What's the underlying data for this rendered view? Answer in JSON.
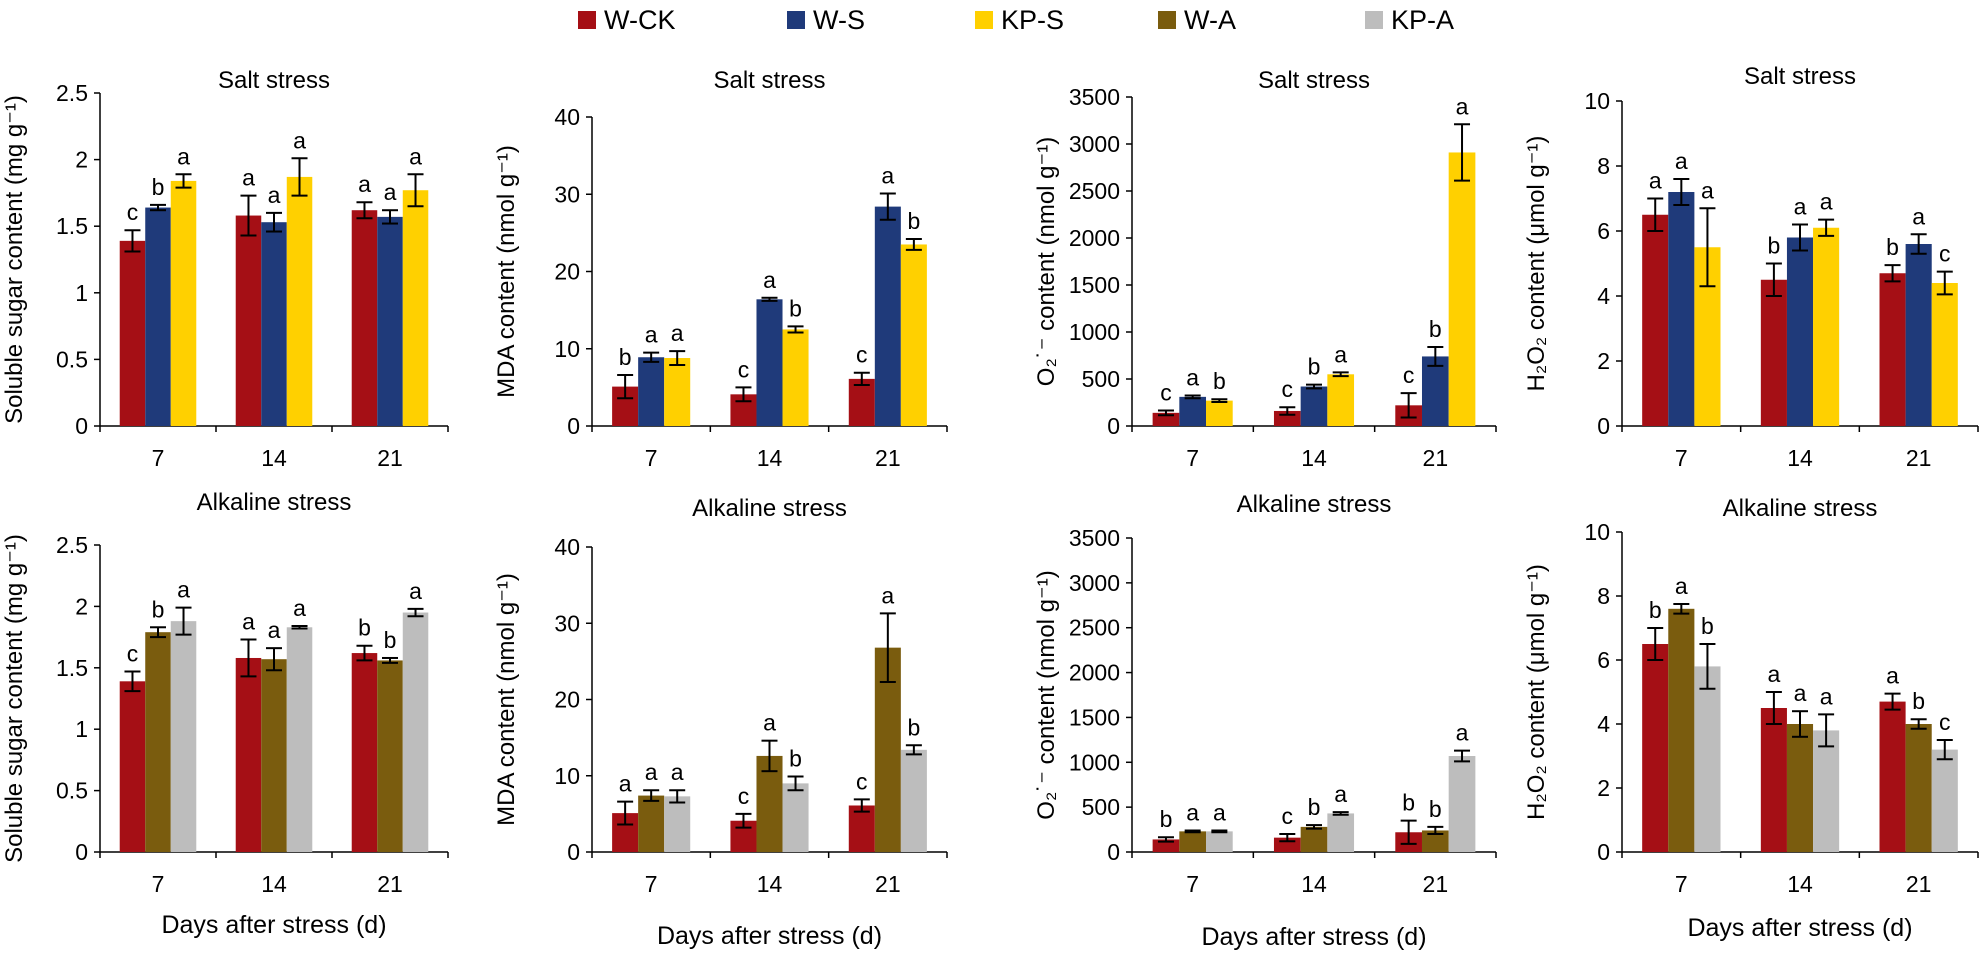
{
  "legend": [
    {
      "label": "W-CK",
      "color": "#A50F15"
    },
    {
      "label": "W-S",
      "color": "#1F3A7A"
    },
    {
      "label": "KP-S",
      "color": "#FFD000"
    },
    {
      "label": "W-A",
      "color": "#7A5C0E"
    },
    {
      "label": "KP-A",
      "color": "#BDBDBD"
    }
  ],
  "x_axis_label": "Days after stress (d)",
  "chart_data": [
    {
      "type": "bar",
      "title": "Salt stress",
      "ylabel": "Soluble sugar content (mg g⁻¹)",
      "ylim": [
        0,
        2.5
      ],
      "yticks": [
        0,
        0.5,
        1,
        1.5,
        2,
        2.5
      ],
      "ytick_labels": [
        "0",
        "0.5",
        "1",
        "1.5",
        "2",
        "2.5"
      ],
      "categories": [
        "7",
        "14",
        "21"
      ],
      "series": [
        {
          "name": "W-CK",
          "color": "#A50F15",
          "values": [
            1.39,
            1.58,
            1.62
          ],
          "errors": [
            0.08,
            0.15,
            0.06
          ],
          "letters": [
            "c",
            "a",
            "a"
          ]
        },
        {
          "name": "W-S",
          "color": "#1F3A7A",
          "values": [
            1.64,
            1.53,
            1.57
          ],
          "errors": [
            0.02,
            0.07,
            0.05
          ],
          "letters": [
            "b",
            "a",
            "a"
          ]
        },
        {
          "name": "KP-S",
          "color": "#FFD000",
          "values": [
            1.84,
            1.87,
            1.77
          ],
          "errors": [
            0.05,
            0.14,
            0.12
          ],
          "letters": [
            "a",
            "a",
            "a"
          ]
        }
      ]
    },
    {
      "type": "bar",
      "title": "Salt stress",
      "ylabel": "MDA content (nmol g⁻¹)",
      "ylim": [
        0,
        40
      ],
      "yticks": [
        0,
        10,
        20,
        30,
        40
      ],
      "ytick_labels": [
        "0",
        "10",
        "20",
        "30",
        "40"
      ],
      "categories": [
        "7",
        "14",
        "21"
      ],
      "series": [
        {
          "name": "W-CK",
          "color": "#A50F15",
          "values": [
            5.1,
            4.1,
            6.1
          ],
          "errors": [
            1.5,
            0.9,
            0.8
          ],
          "letters": [
            "b",
            "c",
            "c"
          ]
        },
        {
          "name": "W-S",
          "color": "#1F3A7A",
          "values": [
            8.9,
            16.4,
            28.4
          ],
          "errors": [
            0.6,
            0.2,
            1.7
          ],
          "letters": [
            "a",
            "a",
            "a"
          ]
        },
        {
          "name": "KP-S",
          "color": "#FFD000",
          "values": [
            8.8,
            12.5,
            23.5
          ],
          "errors": [
            0.9,
            0.4,
            0.7
          ],
          "letters": [
            "a",
            "b",
            "b"
          ]
        }
      ]
    },
    {
      "type": "bar",
      "title": "Salt stress",
      "ylabel": "O₂˙⁻ content (nmol g⁻¹)",
      "ylim": [
        0,
        3500
      ],
      "yticks": [
        0,
        500,
        1000,
        1500,
        2000,
        2500,
        3000,
        3500
      ],
      "ytick_labels": [
        "0",
        "500",
        "1000",
        "1500",
        "2000",
        "2500",
        "3000",
        "3500"
      ],
      "categories": [
        "7",
        "14",
        "21"
      ],
      "series": [
        {
          "name": "W-CK",
          "color": "#A50F15",
          "values": [
            140,
            160,
            220
          ],
          "errors": [
            25,
            40,
            130
          ],
          "letters": [
            "c",
            "c",
            "c"
          ]
        },
        {
          "name": "W-S",
          "color": "#1F3A7A",
          "values": [
            310,
            420,
            740
          ],
          "errors": [
            15,
            20,
            100
          ],
          "letters": [
            "a",
            "b",
            "b"
          ]
        },
        {
          "name": "KP-S",
          "color": "#FFD000",
          "values": [
            270,
            550,
            2910
          ],
          "errors": [
            15,
            20,
            300
          ],
          "letters": [
            "b",
            "a",
            "a"
          ]
        }
      ]
    },
    {
      "type": "bar",
      "title": "Salt stress",
      "ylabel": "H₂O₂ content (μmol g⁻¹)",
      "ylim": [
        0,
        10
      ],
      "yticks": [
        0,
        2,
        4,
        6,
        8,
        10
      ],
      "ytick_labels": [
        "0",
        "2",
        "4",
        "6",
        "8",
        "10"
      ],
      "categories": [
        "7",
        "14",
        "21"
      ],
      "series": [
        {
          "name": "W-CK",
          "color": "#A50F15",
          "values": [
            6.5,
            4.5,
            4.7
          ],
          "errors": [
            0.5,
            0.5,
            0.25
          ],
          "letters": [
            "a",
            "b",
            "b"
          ]
        },
        {
          "name": "W-S",
          "color": "#1F3A7A",
          "values": [
            7.2,
            5.8,
            5.6
          ],
          "errors": [
            0.4,
            0.4,
            0.3
          ],
          "letters": [
            "a",
            "a",
            "a"
          ]
        },
        {
          "name": "KP-S",
          "color": "#FFD000",
          "values": [
            5.5,
            6.1,
            4.4
          ],
          "errors": [
            1.2,
            0.25,
            0.35
          ],
          "letters": [
            "a",
            "a",
            "c"
          ]
        }
      ]
    },
    {
      "type": "bar",
      "title": "Alkaline stress",
      "ylabel": "Soluble sugar content (mg g⁻¹)",
      "ylim": [
        0,
        2.5
      ],
      "yticks": [
        0,
        0.5,
        1,
        1.5,
        2,
        2.5
      ],
      "ytick_labels": [
        "0",
        "0.5",
        "1",
        "1.5",
        "2",
        "2.5"
      ],
      "categories": [
        "7",
        "14",
        "21"
      ],
      "series": [
        {
          "name": "W-CK",
          "color": "#A50F15",
          "values": [
            1.39,
            1.58,
            1.62
          ],
          "errors": [
            0.08,
            0.15,
            0.06
          ],
          "letters": [
            "c",
            "a",
            "b"
          ]
        },
        {
          "name": "W-A",
          "color": "#7A5C0E",
          "values": [
            1.79,
            1.57,
            1.56
          ],
          "errors": [
            0.04,
            0.09,
            0.02
          ],
          "letters": [
            "b",
            "a",
            "b"
          ]
        },
        {
          "name": "KP-A",
          "color": "#BDBDBD",
          "values": [
            1.88,
            1.83,
            1.95
          ],
          "errors": [
            0.11,
            0.01,
            0.03
          ],
          "letters": [
            "a",
            "a",
            "a"
          ]
        }
      ]
    },
    {
      "type": "bar",
      "title": "Alkaline stress",
      "ylabel": "MDA content (nmol g⁻¹)",
      "ylim": [
        0,
        40
      ],
      "yticks": [
        0,
        10,
        20,
        30,
        40
      ],
      "ytick_labels": [
        "0",
        "10",
        "20",
        "30",
        "40"
      ],
      "categories": [
        "7",
        "14",
        "21"
      ],
      "series": [
        {
          "name": "W-CK",
          "color": "#A50F15",
          "values": [
            5.1,
            4.1,
            6.1
          ],
          "errors": [
            1.5,
            0.9,
            0.8
          ],
          "letters": [
            "a",
            "c",
            "c"
          ]
        },
        {
          "name": "W-A",
          "color": "#7A5C0E",
          "values": [
            7.4,
            12.6,
            26.8
          ],
          "errors": [
            0.7,
            2.0,
            4.5
          ],
          "letters": [
            "a",
            "a",
            "a"
          ]
        },
        {
          "name": "KP-A",
          "color": "#BDBDBD",
          "values": [
            7.3,
            9.0,
            13.4
          ],
          "errors": [
            0.8,
            0.9,
            0.6
          ],
          "letters": [
            "a",
            "b",
            "b"
          ]
        }
      ]
    },
    {
      "type": "bar",
      "title": "Alkaline stress",
      "ylabel": "O₂˙⁻ content (nmol g⁻¹)",
      "ylim": [
        0,
        3500
      ],
      "yticks": [
        0,
        500,
        1000,
        1500,
        2000,
        2500,
        3000,
        3500
      ],
      "ytick_labels": [
        "0",
        "500",
        "1000",
        "1500",
        "2000",
        "2500",
        "3000",
        "3500"
      ],
      "categories": [
        "7",
        "14",
        "21"
      ],
      "series": [
        {
          "name": "W-CK",
          "color": "#A50F15",
          "values": [
            140,
            160,
            220
          ],
          "errors": [
            25,
            40,
            130
          ],
          "letters": [
            "b",
            "c",
            "b"
          ]
        },
        {
          "name": "W-A",
          "color": "#7A5C0E",
          "values": [
            230,
            280,
            240
          ],
          "errors": [
            10,
            20,
            40
          ],
          "letters": [
            "a",
            "b",
            "b"
          ]
        },
        {
          "name": "KP-A",
          "color": "#BDBDBD",
          "values": [
            230,
            430,
            1070
          ],
          "errors": [
            10,
            15,
            60
          ],
          "letters": [
            "a",
            "a",
            "a"
          ]
        }
      ]
    },
    {
      "type": "bar",
      "title": "Alkaline stress",
      "ylabel": "H₂O₂ content (μmol g⁻¹)",
      "ylim": [
        0,
        10
      ],
      "yticks": [
        0,
        2,
        4,
        6,
        8,
        10
      ],
      "ytick_labels": [
        "0",
        "2",
        "4",
        "6",
        "8",
        "10"
      ],
      "categories": [
        "7",
        "14",
        "21"
      ],
      "series": [
        {
          "name": "W-CK",
          "color": "#A50F15",
          "values": [
            6.5,
            4.5,
            4.7
          ],
          "errors": [
            0.5,
            0.5,
            0.25
          ],
          "letters": [
            "b",
            "a",
            "a"
          ]
        },
        {
          "name": "W-A",
          "color": "#7A5C0E",
          "values": [
            7.6,
            4.0,
            4.0
          ],
          "errors": [
            0.15,
            0.4,
            0.15
          ],
          "letters": [
            "a",
            "a",
            "b"
          ]
        },
        {
          "name": "KP-A",
          "color": "#BDBDBD",
          "values": [
            5.8,
            3.8,
            3.2
          ],
          "errors": [
            0.7,
            0.5,
            0.3
          ],
          "letters": [
            "b",
            "a",
            "c"
          ]
        }
      ]
    }
  ]
}
